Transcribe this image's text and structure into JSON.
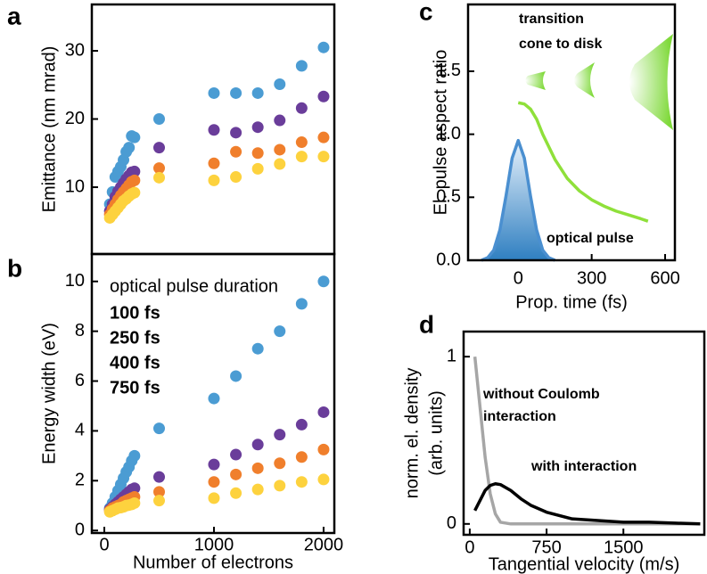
{
  "chart_data": [
    {
      "type": "scatter",
      "letter": "a",
      "ylabel": "Emittance (nm mrad)",
      "x": [
        50,
        75,
        100,
        125,
        150,
        175,
        200,
        225,
        250,
        275,
        500,
        1000,
        1200,
        1400,
        1600,
        1800,
        2000
      ],
      "xlim": [
        -114,
        2098
      ],
      "ylim": [
        0.2,
        36.8
      ],
      "yticks": [
        10,
        20,
        30
      ],
      "series": [
        {
          "color": "#4b9cd3",
          "values": [
            7.5,
            9.3,
            11.5,
            12.3,
            13,
            14,
            15.2,
            15.8,
            17.5,
            17.3,
            20,
            23.8,
            23.8,
            23.8,
            25.1,
            27.8,
            30.5
          ]
        },
        {
          "color": "#6a3d9a",
          "values": [
            6.5,
            7.5,
            8.6,
            9.4,
            10,
            10.6,
            11.2,
            11.7,
            12.2,
            12.3,
            15.8,
            18.4,
            18,
            18.8,
            19.8,
            21.6,
            23.3
          ]
        },
        {
          "color": "#f07f2c",
          "values": [
            6,
            6.8,
            7.5,
            8.2,
            8.8,
            9.3,
            9.8,
            10.3,
            10.8,
            11,
            12.8,
            13.5,
            15.2,
            15,
            15.5,
            16.6,
            17.3
          ]
        },
        {
          "color": "#fdd23e",
          "values": [
            5.5,
            6,
            6.5,
            7,
            7.5,
            8,
            8.3,
            8.7,
            9,
            9.2,
            11.4,
            11,
            11.5,
            12.7,
            13.4,
            14.5,
            14.5
          ]
        }
      ]
    },
    {
      "type": "scatter",
      "letter": "b",
      "ylabel": "Energy width (eV)",
      "xlabel": "Number of electrons",
      "legend_title": "optical pulse duration",
      "x": [
        50,
        75,
        100,
        125,
        150,
        175,
        200,
        225,
        250,
        275,
        500,
        1000,
        1200,
        1400,
        1600,
        1800,
        2000
      ],
      "xlim": [
        -114,
        2098
      ],
      "xticks": [
        0,
        1000,
        2000
      ],
      "ylim": [
        -0.1,
        11.1
      ],
      "yticks": [
        0,
        2,
        4,
        6,
        8,
        10
      ],
      "series": [
        {
          "name": "100 fs",
          "color": "#4b9cd3",
          "values": [
            0.9,
            1.1,
            1.35,
            1.6,
            1.85,
            2.1,
            2.35,
            2.55,
            2.8,
            3,
            4.1,
            5.3,
            6.2,
            7.3,
            8,
            9.1,
            10
          ]
        },
        {
          "name": "250 fs",
          "color": "#6a3d9a",
          "values": [
            0.85,
            0.95,
            1.05,
            1.15,
            1.25,
            1.35,
            1.45,
            1.55,
            1.65,
            1.7,
            2.15,
            2.65,
            3.05,
            3.45,
            3.85,
            4.25,
            4.75
          ]
        },
        {
          "name": "400 fs",
          "color": "#f07f2c",
          "values": [
            0.8,
            0.9,
            0.95,
            1,
            1.05,
            1.15,
            1.2,
            1.25,
            1.3,
            1.35,
            1.55,
            1.95,
            2.25,
            2.5,
            2.7,
            2.95,
            3.25
          ]
        },
        {
          "name": "750 fs",
          "color": "#fdd23e",
          "values": [
            0.75,
            0.8,
            0.85,
            0.9,
            0.92,
            0.95,
            1,
            1.02,
            1.05,
            1.1,
            1.2,
            1.3,
            1.5,
            1.65,
            1.8,
            1.95,
            2.05
          ]
        }
      ]
    },
    {
      "type": "line",
      "letter": "c",
      "ylabel": "El. pulse aspect ratio",
      "xlabel": "Prop. time (fs)",
      "xlim": [
        -205,
        640
      ],
      "xticks": [
        0,
        300,
        600
      ],
      "ylim": [
        0,
        2.03
      ],
      "yticks": [
        {
          "value": 0,
          "label": "0.0"
        },
        0.5,
        {
          "value": 1,
          "label": "1.0"
        },
        1.5
      ],
      "annotations": [
        {
          "text": "transition",
          "color": "#000000"
        },
        {
          "text": "cone to disk",
          "color": "#000000"
        },
        {
          "text": "optical pulse",
          "color": "#4a8fd0"
        }
      ],
      "series": [
        {
          "color": "#4a8fd0",
          "area": true,
          "x": [
            -150,
            -125,
            -100,
            -75,
            -50,
            -25,
            0,
            25,
            50,
            75,
            100,
            125,
            150
          ],
          "values": [
            0,
            0.02,
            0.08,
            0.24,
            0.51,
            0.81,
            0.95,
            0.81,
            0.51,
            0.24,
            0.08,
            0.02,
            0
          ]
        },
        {
          "color": "#8fe03a",
          "x": [
            0,
            25,
            50,
            75,
            100,
            150,
            200,
            250,
            300,
            350,
            400,
            450,
            500,
            530
          ],
          "values": [
            1.25,
            1.24,
            1.2,
            1.12,
            1,
            0.8,
            0.65,
            0.55,
            0.48,
            0.43,
            0.39,
            0.36,
            0.33,
            0.31
          ]
        }
      ]
    },
    {
      "type": "line",
      "letter": "d",
      "ylabel": [
        "norm. el. density",
        "(arb. units)"
      ],
      "xlabel": "Tangential velocity (m/s)",
      "x": [
        50,
        100,
        150,
        200,
        250,
        300,
        400,
        500,
        600,
        750,
        1000,
        1250,
        1500,
        1750,
        2000,
        2250
      ],
      "xlim": [
        -60,
        2290
      ],
      "xticks": [
        0,
        750,
        1500
      ],
      "ylim": [
        -0.065,
        1.15
      ],
      "yticks": [
        0,
        1
      ],
      "annotations": [
        {
          "text": "without Coulomb",
          "color": "#a6a6a6"
        },
        {
          "text": "interaction",
          "color": "#a6a6a6"
        },
        {
          "text": "with interaction",
          "color": "#000000"
        }
      ],
      "series": [
        {
          "color": "#a6a6a6",
          "values": [
            1,
            0.7,
            0.4,
            0.18,
            0.06,
            0.01,
            0,
            0,
            0,
            0,
            0,
            0,
            0,
            0,
            0,
            0
          ]
        },
        {
          "color": "#000000",
          "values": [
            0.08,
            0.14,
            0.2,
            0.23,
            0.24,
            0.235,
            0.2,
            0.15,
            0.11,
            0.07,
            0.03,
            0.02,
            0.01,
            0.01,
            0.005,
            0
          ]
        }
      ]
    }
  ]
}
